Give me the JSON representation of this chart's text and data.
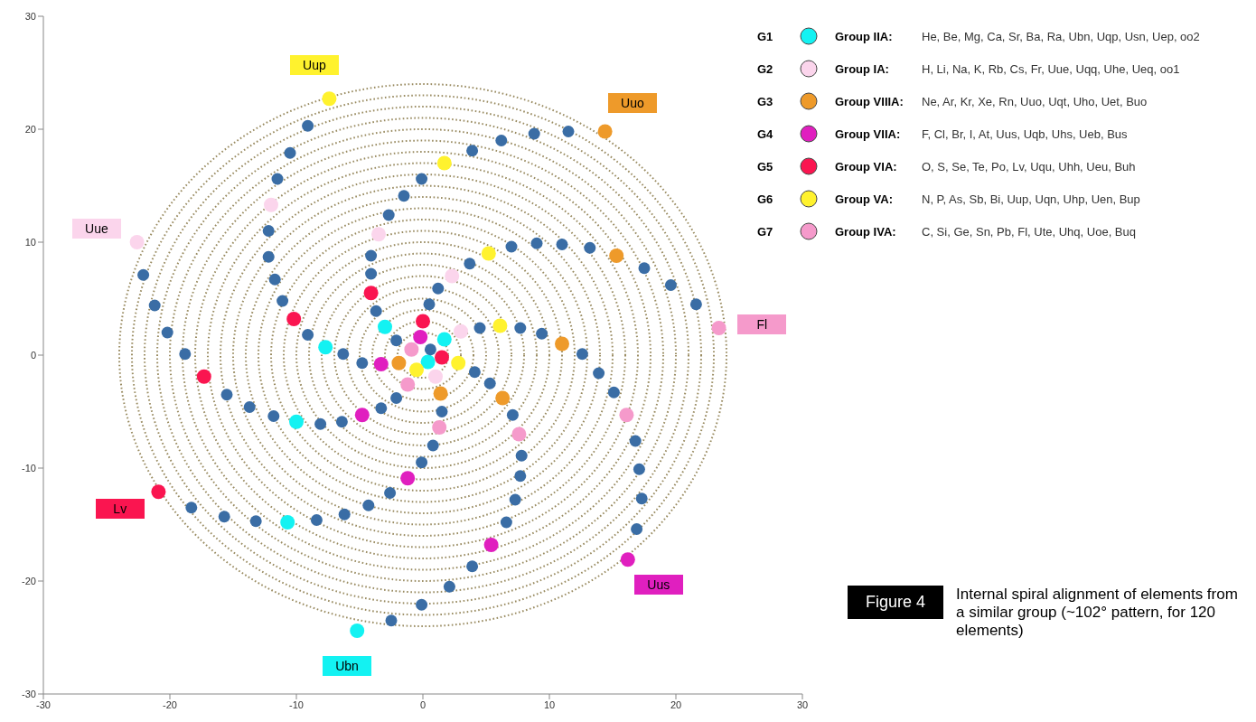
{
  "chart_data": {
    "type": "scatter",
    "xlim": [
      -30,
      30
    ],
    "ylim": [
      -30,
      30
    ],
    "xticks": [
      -30,
      -20,
      -10,
      0,
      10,
      20,
      30
    ],
    "yticks": [
      -30,
      -20,
      -10,
      0,
      10,
      20,
      30
    ],
    "grid": false,
    "legend": "top right",
    "marker": "circle",
    "series": [
      {
        "name": "G1",
        "color": "#13f2f2",
        "x": [
          -5.2,
          -10.7,
          -10.0,
          -7.7,
          -3.0,
          1.7,
          0.4
        ],
        "values": [
          -24.4,
          -14.8,
          -5.9,
          0.7,
          2.5,
          1.4,
          -0.6
        ]
      },
      {
        "name": "G2",
        "color": "#fbd5ec",
        "x": [
          -22.6,
          -12.0,
          -3.5,
          2.3,
          3.0,
          1.0
        ],
        "values": [
          10.0,
          13.3,
          10.7,
          7.0,
          2.1,
          -1.9
        ]
      },
      {
        "name": "G3",
        "color": "#ee9a2a",
        "x": [
          14.4,
          15.3,
          11.0,
          6.3,
          1.4,
          -1.9
        ],
        "values": [
          19.8,
          8.8,
          1.0,
          -3.8,
          -3.4,
          -0.7
        ]
      },
      {
        "name": "G4",
        "color": "#e01fbf",
        "x": [
          16.2,
          5.4,
          -1.2,
          -4.8,
          -3.3,
          -0.2
        ],
        "values": [
          -18.1,
          -16.8,
          -10.9,
          -5.3,
          -0.8,
          1.6
        ]
      },
      {
        "name": "G5",
        "color": "#fa1550",
        "x": [
          -20.9,
          -17.3,
          -10.2,
          -4.1,
          0.0,
          1.5
        ],
        "values": [
          -12.1,
          -1.9,
          3.2,
          5.5,
          3.0,
          -0.2
        ]
      },
      {
        "name": "G6",
        "color": "#fff22e",
        "x": [
          -7.4,
          1.7,
          5.2,
          6.1,
          2.8,
          -0.5
        ],
        "values": [
          22.7,
          17.0,
          9.0,
          2.6,
          -0.7,
          -1.3
        ]
      },
      {
        "name": "G7",
        "color": "#f59acb",
        "x": [
          23.4,
          16.1,
          7.6,
          1.3,
          -1.2,
          -0.9
        ],
        "values": [
          2.4,
          -5.3,
          -7.0,
          -6.4,
          -2.6,
          0.5
        ]
      },
      {
        "color": "#3a6da5",
        "x": [
          -9.1,
          -10.5,
          -11.5,
          -12.2,
          -12.2,
          -11.7,
          -11.1,
          -9.1,
          -6.3,
          -0.1,
          -1.5,
          -2.7,
          -4.1,
          -4.1,
          -3.7,
          -2.1,
          -22.1,
          -21.2,
          -20.2,
          -18.8,
          3.9,
          6.2,
          8.8,
          11.5,
          7.0,
          9.0,
          11.0,
          13.2,
          17.5,
          19.6,
          21.6,
          3.7,
          1.2,
          0.5,
          4.5,
          7.7,
          9.4,
          0.6,
          12.6,
          -15.5,
          -13.7,
          -11.8,
          -8.1,
          -6.4,
          -4.8,
          -2.1,
          -3.3,
          -0.1,
          -2.6,
          -4.3,
          -6.2,
          -8.4,
          -13.2,
          -15.7,
          -18.3,
          -0.1,
          -2.5,
          13.9,
          15.1,
          4.1,
          5.3,
          7.1,
          1.5,
          0.8,
          7.8,
          7.7,
          7.3,
          6.6,
          3.9,
          2.1,
          16.8,
          17.1,
          17.3,
          16.9
        ],
        "values": [
          20.3,
          17.9,
          15.6,
          11.0,
          8.7,
          6.7,
          4.8,
          1.8,
          0.1,
          15.6,
          14.1,
          12.4,
          8.8,
          7.2,
          3.9,
          1.3,
          7.1,
          4.4,
          2.0,
          0.1,
          18.1,
          19.0,
          19.6,
          19.8,
          9.6,
          9.9,
          9.8,
          9.5,
          7.7,
          6.2,
          4.5,
          8.1,
          5.9,
          4.5,
          2.4,
          2.4,
          1.9,
          0.5,
          0.1,
          -3.5,
          -4.6,
          -5.4,
          -6.1,
          -5.9,
          -0.7,
          -3.8,
          -4.7,
          -9.5,
          -12.2,
          -13.3,
          -14.1,
          -14.6,
          -14.7,
          -14.3,
          -13.5,
          -22.1,
          -23.5,
          -1.6,
          -3.3,
          -1.5,
          -2.5,
          -5.3,
          -5.0,
          -8.0,
          -8.9,
          -10.7,
          -12.8,
          -14.8,
          -18.7,
          -20.5,
          -7.6,
          -10.1,
          -12.7,
          -15.4
        ]
      }
    ],
    "annotations": [
      "Group IIA:",
      "He, Be, Mg, Ca, Sr, Ba, Ra, Ubn, Uqp, Usn, Uep, oo2",
      "Group IA:",
      "H, Li, Na, K, Rb, Cs, Fr, Uue, Uqq, Uhe, Ueq, oo1",
      "Group VIIIA:",
      "Ne, Ar, Kr, Xe, Rn, Uuo, Uqt, Uho, Uet, Buo",
      "Group VIIA:",
      "F, Cl, Br, I, At, Uus, Uqb, Uhs, Ueb, Bus",
      "Group VIA:",
      "O, S, Se, Te, Po, Lv, Uqu, Uhh, Ueu, Buh",
      "Group VA:",
      "N, P, As, Sb, Bi, Uup, Uqn, Uhp, Uen, Bup",
      "Group IVA:",
      "C, Si, Ge, Sn, Pb, Fl, Ute, Uhq, Uoe, Buq",
      {
        "text": "Uup",
        "x": -7.4,
        "y": 22.7
      },
      {
        "text": "Uuo",
        "x": 14.4,
        "y": 19.8
      },
      {
        "text": "Uue",
        "x": -22.6,
        "y": 10.0
      },
      {
        "text": "Fl",
        "x": 23.4,
        "y": 2.4
      },
      {
        "text": "Lv",
        "x": -20.9,
        "y": -12.1
      },
      {
        "text": "Uus",
        "x": 16.2,
        "y": -18.1
      },
      {
        "text": "Ubn",
        "x": -5.2,
        "y": -24.4
      },
      "Figure 4",
      "Internal spiral alignment of elements from a similar group (~102° pattern, for 120 elements)"
    ]
  }
}
